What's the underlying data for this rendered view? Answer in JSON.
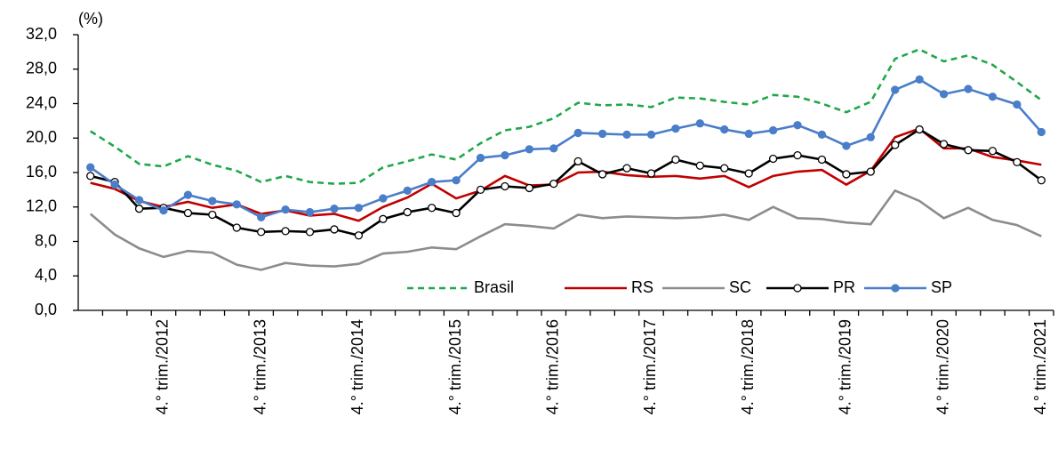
{
  "chart_data": {
    "type": "line",
    "y_label": "(%)",
    "categories": [
      null,
      null,
      null,
      "4.° trim./2012",
      null,
      null,
      null,
      "4.° trim./2013",
      null,
      null,
      null,
      "4.° trim./2014",
      null,
      null,
      null,
      "4.° trim./2015",
      null,
      null,
      null,
      "4.° trim./2016",
      null,
      null,
      null,
      "4.° trim./2017",
      null,
      null,
      null,
      "4.° trim./2018",
      null,
      null,
      null,
      "4.° trim./2019",
      null,
      null,
      null,
      "4.° trim./2020",
      null,
      null,
      null,
      "4.° trim./2021"
    ],
    "series": [
      {
        "name": "Brasil",
        "color": "#1fa84a",
        "line_style": "dashed",
        "marker": "none",
        "values": [
          20.8,
          19.0,
          17.0,
          16.7,
          17.9,
          16.9,
          16.2,
          14.9,
          15.6,
          14.9,
          14.7,
          14.8,
          16.6,
          17.3,
          18.1,
          17.5,
          19.4,
          20.9,
          21.3,
          22.3,
          24.1,
          23.8,
          23.9,
          23.6,
          24.7,
          24.6,
          24.2,
          23.9,
          25.0,
          24.8,
          24.0,
          23.0,
          24.2,
          29.2,
          30.3,
          28.9,
          29.6,
          28.5,
          26.5,
          24.4
        ]
      },
      {
        "name": "RS",
        "color": "#c00000",
        "line_style": "solid",
        "marker": "none",
        "values": [
          14.8,
          14.1,
          12.7,
          12.0,
          12.6,
          11.9,
          12.3,
          11.2,
          11.6,
          11.0,
          11.2,
          10.4,
          12.0,
          13.1,
          14.7,
          13.0,
          13.9,
          15.6,
          14.5,
          14.6,
          16.0,
          16.1,
          15.7,
          15.5,
          15.6,
          15.3,
          15.6,
          14.3,
          15.6,
          16.1,
          16.3,
          14.6,
          16.2,
          20.1,
          21.1,
          18.8,
          18.8,
          17.8,
          17.4,
          16.9
        ]
      },
      {
        "name": "SC",
        "color": "#8c8c8c",
        "line_style": "solid",
        "marker": "none",
        "values": [
          11.2,
          8.8,
          7.2,
          6.2,
          6.9,
          6.7,
          5.3,
          4.7,
          5.5,
          5.2,
          5.1,
          5.4,
          6.6,
          6.8,
          7.3,
          7.1,
          8.6,
          10.0,
          9.8,
          9.5,
          11.1,
          10.7,
          10.9,
          10.8,
          10.7,
          10.8,
          11.1,
          10.5,
          12.0,
          10.7,
          10.6,
          10.2,
          10.0,
          13.9,
          12.7,
          10.7,
          11.9,
          10.5,
          9.9,
          8.6
        ]
      },
      {
        "name": "PR",
        "color": "#000000",
        "line_style": "solid",
        "marker": "open-circle",
        "values": [
          15.6,
          14.9,
          11.8,
          11.9,
          11.3,
          11.1,
          9.6,
          9.1,
          9.2,
          9.1,
          9.4,
          8.7,
          10.6,
          11.4,
          11.9,
          11.3,
          14.0,
          14.4,
          14.2,
          14.7,
          17.3,
          15.8,
          16.5,
          15.9,
          17.5,
          16.8,
          16.5,
          15.9,
          17.6,
          18.0,
          17.5,
          15.8,
          16.1,
          19.2,
          21.0,
          19.3,
          18.6,
          18.5,
          17.2,
          15.1
        ]
      },
      {
        "name": "SP",
        "color": "#4a7ec9",
        "line_style": "solid",
        "marker": "filled-circle",
        "values": [
          16.6,
          14.6,
          12.8,
          11.6,
          13.4,
          12.7,
          12.3,
          10.8,
          11.7,
          11.4,
          11.8,
          11.9,
          13.0,
          13.9,
          14.9,
          15.1,
          17.7,
          18.0,
          18.7,
          18.8,
          20.6,
          20.5,
          20.4,
          20.4,
          21.1,
          21.7,
          21.0,
          20.5,
          20.9,
          21.5,
          20.4,
          19.1,
          20.1,
          25.6,
          26.8,
          25.1,
          25.7,
          24.8,
          23.9,
          20.7
        ]
      }
    ],
    "ylim": [
      0,
      32
    ],
    "yticks": [
      {
        "value": 0,
        "label": "0,0"
      },
      {
        "value": 4,
        "label": "4,0"
      },
      {
        "value": 8,
        "label": "8,0"
      },
      {
        "value": 12,
        "label": "12,0"
      },
      {
        "value": 16,
        "label": "16,0"
      },
      {
        "value": 20,
        "label": "20,0"
      },
      {
        "value": 24,
        "label": "24,0"
      },
      {
        "value": 28,
        "label": "28,0"
      },
      {
        "value": 32,
        "label": "32,0"
      }
    ],
    "grid": false,
    "legend": "bottom-right"
  }
}
